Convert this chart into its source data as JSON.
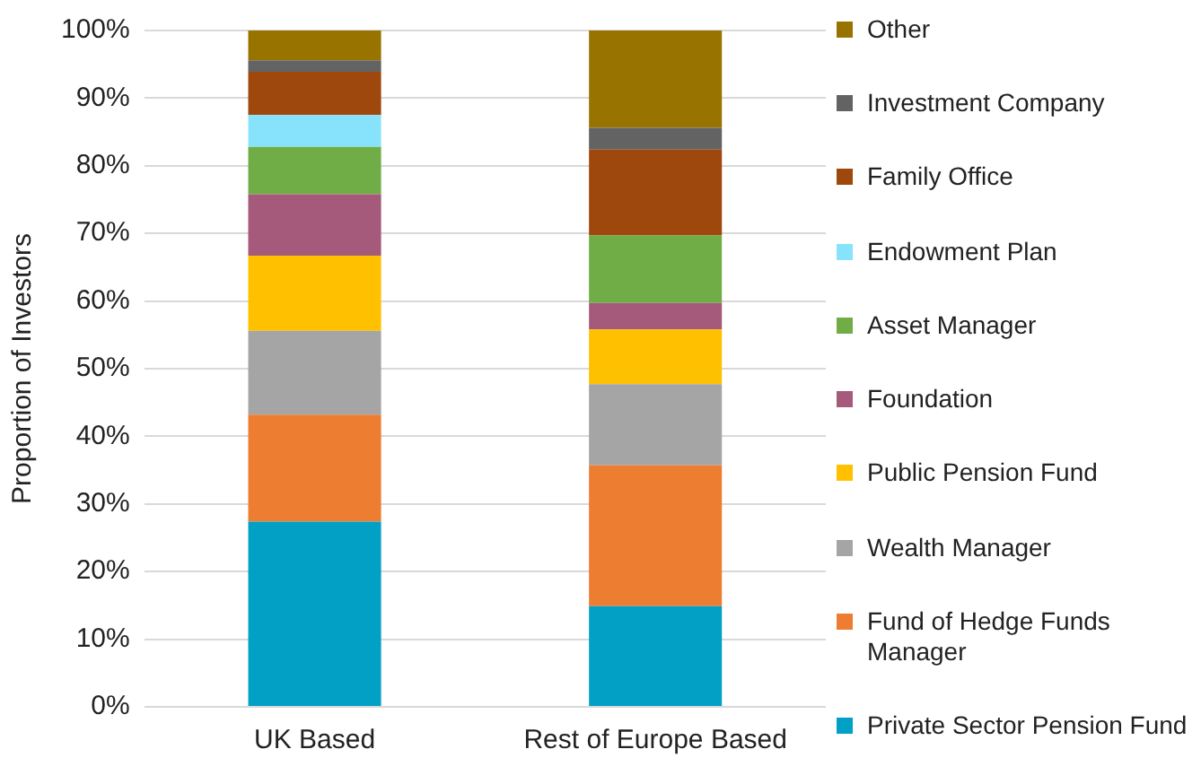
{
  "chart_data": {
    "type": "bar",
    "stacked": true,
    "ylabel": "Proportion of Investors",
    "categories": [
      "UK Based",
      "Rest of Europe Based"
    ],
    "series": [
      {
        "name": "Private Sector Pension Fund",
        "color": "#03a0c6",
        "values": [
          27.4,
          14.9
        ]
      },
      {
        "name": "Fund of Hedge Funds Manager",
        "color": "#ed7d31",
        "values": [
          15.8,
          20.8
        ]
      },
      {
        "name": "Wealth Manager",
        "color": "#a5a5a5",
        "values": [
          12.4,
          12.0
        ]
      },
      {
        "name": "Public Pension Fund",
        "color": "#ffc000",
        "values": [
          11.1,
          8.1
        ]
      },
      {
        "name": "Foundation",
        "color": "#a5597b",
        "values": [
          9.1,
          3.9
        ]
      },
      {
        "name": "Asset Manager",
        "color": "#70ad47",
        "values": [
          7.0,
          10.0
        ]
      },
      {
        "name": "Endowment Plan",
        "color": "#87e3fc",
        "values": [
          4.7,
          0
        ]
      },
      {
        "name": "Family Office",
        "color": "#9e480e",
        "values": [
          6.4,
          12.7
        ]
      },
      {
        "name": "Investment Company",
        "color": "#636363",
        "values": [
          1.7,
          3.2
        ]
      },
      {
        "name": "Other",
        "color": "#997300",
        "values": [
          4.4,
          14.4
        ]
      }
    ],
    "ylim": [
      0,
      100
    ],
    "yticks": [
      {
        "value": 0,
        "label": "0%"
      },
      {
        "value": 10,
        "label": "10%"
      },
      {
        "value": 20,
        "label": "20%"
      },
      {
        "value": 30,
        "label": "30%"
      },
      {
        "value": 40,
        "label": "40%"
      },
      {
        "value": 50,
        "label": "50%"
      },
      {
        "value": 60,
        "label": "60%"
      },
      {
        "value": 70,
        "label": "70%"
      },
      {
        "value": 80,
        "label": "80%"
      },
      {
        "value": 90,
        "label": "90%"
      },
      {
        "value": 100,
        "label": "100%"
      }
    ],
    "grid": "y",
    "legend": "right"
  }
}
